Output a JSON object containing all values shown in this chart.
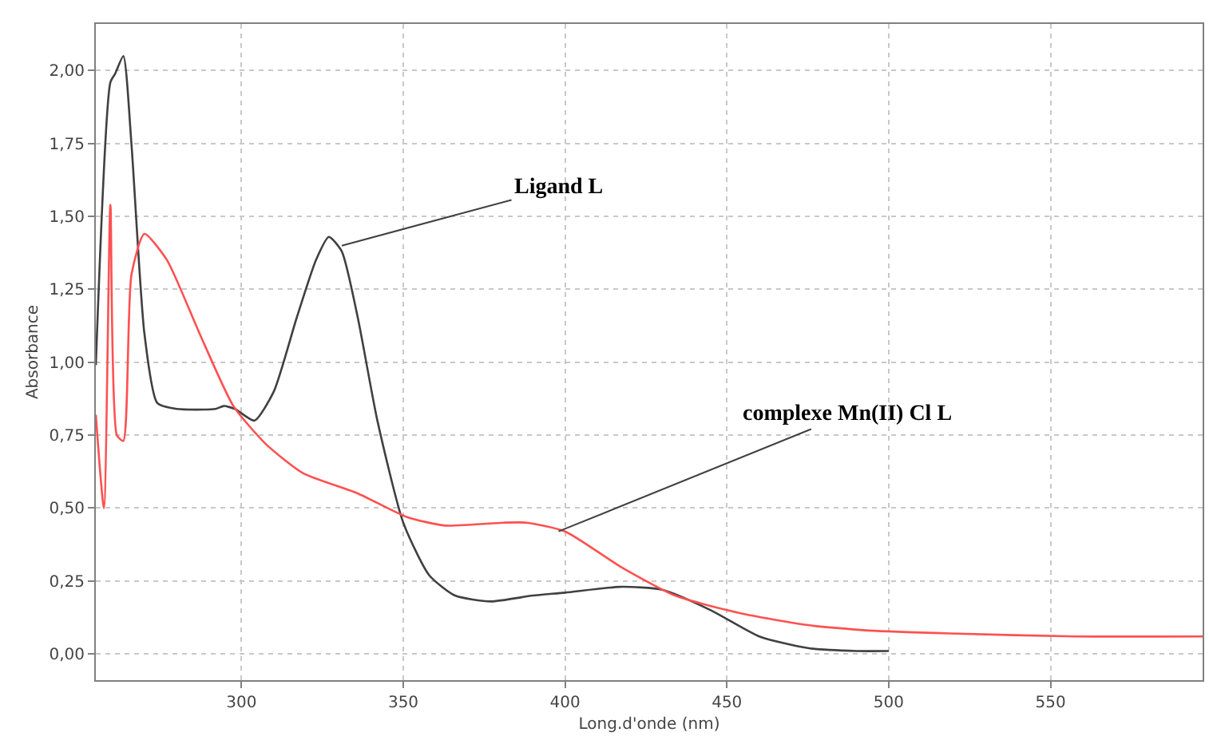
{
  "chart_data": {
    "type": "line",
    "xlabel": "Long.d'onde (nm)",
    "ylabel": "Absorbance",
    "xlim": [
      255,
      597
    ],
    "ylim": [
      -0.09,
      2.16
    ],
    "xticks": [
      300,
      350,
      400,
      450,
      500,
      550
    ],
    "yticks": [
      {
        "value": 0,
        "label": "0,00"
      },
      {
        "value": 0.25,
        "label": "0,25"
      },
      {
        "value": 0.5,
        "label": "0,50"
      },
      {
        "value": 0.75,
        "label": "0,75"
      },
      {
        "value": 1,
        "label": "1,00"
      },
      {
        "value": 1.25,
        "label": "1,25"
      },
      {
        "value": 1.5,
        "label": "1,50"
      },
      {
        "value": 1.75,
        "label": "1,75"
      },
      {
        "value": 2,
        "label": "2,00"
      }
    ],
    "grid": true,
    "marker": "none",
    "line_style": "solid",
    "series": [
      {
        "color": "#404040",
        "x": [
          255,
          259.5,
          261,
          263.5,
          266,
          270,
          274,
          280,
          292,
          294.5,
          298,
          304,
          310,
          317,
          323,
          327,
          331,
          336,
          342,
          350,
          358,
          366,
          377,
          390,
          400,
          417,
          430,
          445,
          460,
          475,
          490,
          500
        ],
        "values": [
          0.99,
          1.96,
          1.99,
          2.05,
          1.75,
          1.1,
          0.86,
          0.84,
          0.84,
          0.85,
          0.84,
          0.8,
          0.9,
          1.15,
          1.35,
          1.43,
          1.38,
          1.15,
          0.8,
          0.45,
          0.27,
          0.2,
          0.18,
          0.2,
          0.21,
          0.23,
          0.22,
          0.15,
          0.06,
          0.02,
          0.01,
          0.01
        ]
      },
      {
        "color": "#ff5050",
        "x": [
          255,
          257.5,
          259.5,
          261.5,
          263.5,
          266,
          270,
          277,
          287,
          297.5,
          307.5,
          319,
          336,
          351,
          363,
          381,
          388,
          400,
          417,
          434,
          454,
          474,
          494,
          519,
          558,
          597
        ],
        "values": [
          0.82,
          0.5,
          1.54,
          0.75,
          0.73,
          1.3,
          1.44,
          1.35,
          1.1,
          0.85,
          0.72,
          0.62,
          0.55,
          0.47,
          0.44,
          0.45,
          0.45,
          0.42,
          0.3,
          0.2,
          0.14,
          0.1,
          0.08,
          0.07,
          0.06,
          0.06
        ]
      }
    ],
    "annotations": [
      {
        "text": "Ligand L",
        "x": 331,
        "y": 1.4
      },
      {
        "text": "complexe Mn(II) Cl L",
        "x": 398,
        "y": 0.42
      }
    ]
  }
}
